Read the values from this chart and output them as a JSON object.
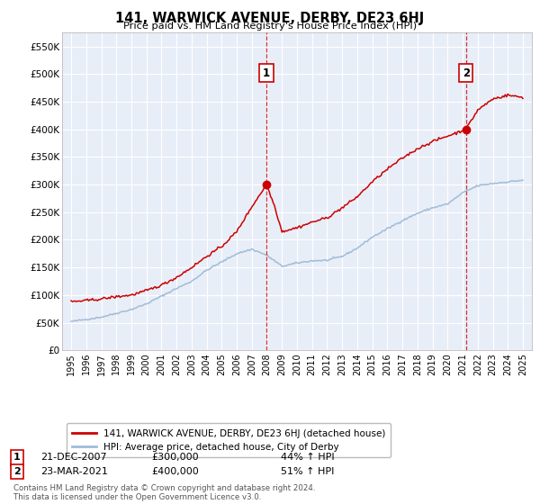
{
  "title": "141, WARWICK AVENUE, DERBY, DE23 6HJ",
  "subtitle": "Price paid vs. HM Land Registry's House Price Index (HPI)",
  "plot_bg_color": "#e8eef8",
  "ylim": [
    0,
    575000
  ],
  "yticks": [
    0,
    50000,
    100000,
    150000,
    200000,
    250000,
    300000,
    350000,
    400000,
    450000,
    500000,
    550000
  ],
  "transaction1_date": 2007.97,
  "transaction1_price": 300000,
  "transaction1_label": "1",
  "transaction2_date": 2021.22,
  "transaction2_price": 400000,
  "transaction2_label": "2",
  "hpi_color": "#a0bcd8",
  "price_color": "#cc0000",
  "legend_label_price": "141, WARWICK AVENUE, DERBY, DE23 6HJ (detached house)",
  "legend_label_hpi": "HPI: Average price, detached house, City of Derby",
  "annotation1_date": "21-DEC-2007",
  "annotation1_price": "£300,000",
  "annotation1_hpi": "44% ↑ HPI",
  "annotation2_date": "23-MAR-2021",
  "annotation2_price": "£400,000",
  "annotation2_hpi": "51% ↑ HPI",
  "footer": "Contains HM Land Registry data © Crown copyright and database right 2024.\nThis data is licensed under the Open Government Licence v3.0.",
  "hpi_x": [
    1995,
    1996,
    1997,
    1998,
    1999,
    2000,
    2001,
    2002,
    2003,
    2004,
    2005,
    2006,
    2007,
    2008,
    2009,
    2010,
    2011,
    2012,
    2013,
    2014,
    2015,
    2016,
    2017,
    2018,
    2019,
    2020,
    2021,
    2022,
    2023,
    2024,
    2025
  ],
  "hpi_y": [
    52000,
    56000,
    60000,
    67000,
    74000,
    84000,
    98000,
    112000,
    125000,
    145000,
    160000,
    175000,
    183000,
    172000,
    152000,
    158000,
    162000,
    163000,
    170000,
    185000,
    205000,
    220000,
    235000,
    248000,
    258000,
    265000,
    285000,
    298000,
    302000,
    305000,
    308000
  ],
  "price_x": [
    1995,
    1996,
    1997,
    1998,
    1999,
    2000,
    2001,
    2002,
    2003,
    2004,
    2005,
    2006,
    2007,
    2007.97,
    2008.5,
    2009,
    2010,
    2011,
    2012,
    2013,
    2014,
    2015,
    2016,
    2017,
    2018,
    2019,
    2020,
    2021.22,
    2022,
    2023,
    2024,
    2025
  ],
  "price_y": [
    88000,
    90000,
    93000,
    97000,
    100000,
    108000,
    118000,
    132000,
    150000,
    170000,
    188000,
    215000,
    260000,
    300000,
    262000,
    215000,
    222000,
    232000,
    240000,
    258000,
    278000,
    305000,
    328000,
    348000,
    365000,
    378000,
    388000,
    400000,
    435000,
    455000,
    462000,
    458000
  ]
}
